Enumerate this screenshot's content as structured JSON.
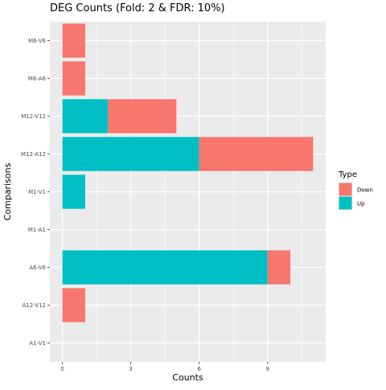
{
  "chart_data": {
    "type": "bar",
    "orientation": "horizontal",
    "stacked": true,
    "title": "DEG Counts (Fold: 2 & FDR: 10%)",
    "xlabel": "Counts",
    "ylabel": "Comparisons",
    "categories": [
      "A1-V1",
      "A12-V12",
      "A6-V6",
      "M1-A1",
      "M1-V1",
      "M12-A12",
      "M12-V12",
      "M6-A6",
      "M6-V6"
    ],
    "series": [
      {
        "name": "Up",
        "color": "#00BFC4",
        "values": [
          0,
          0,
          9,
          0,
          1,
          6,
          2,
          0,
          0
        ]
      },
      {
        "name": "Down",
        "color": "#F8766D",
        "values": [
          0,
          1,
          1,
          0,
          0,
          5,
          3,
          1,
          1
        ]
      }
    ],
    "xlim": [
      -0.55,
      11.55
    ],
    "xticks": [
      0,
      3,
      6,
      9
    ],
    "legend": {
      "title": "Type",
      "position": "right",
      "entries": [
        "Down",
        "Up"
      ]
    },
    "grid": true,
    "panel_color": "#EBEBEB"
  }
}
